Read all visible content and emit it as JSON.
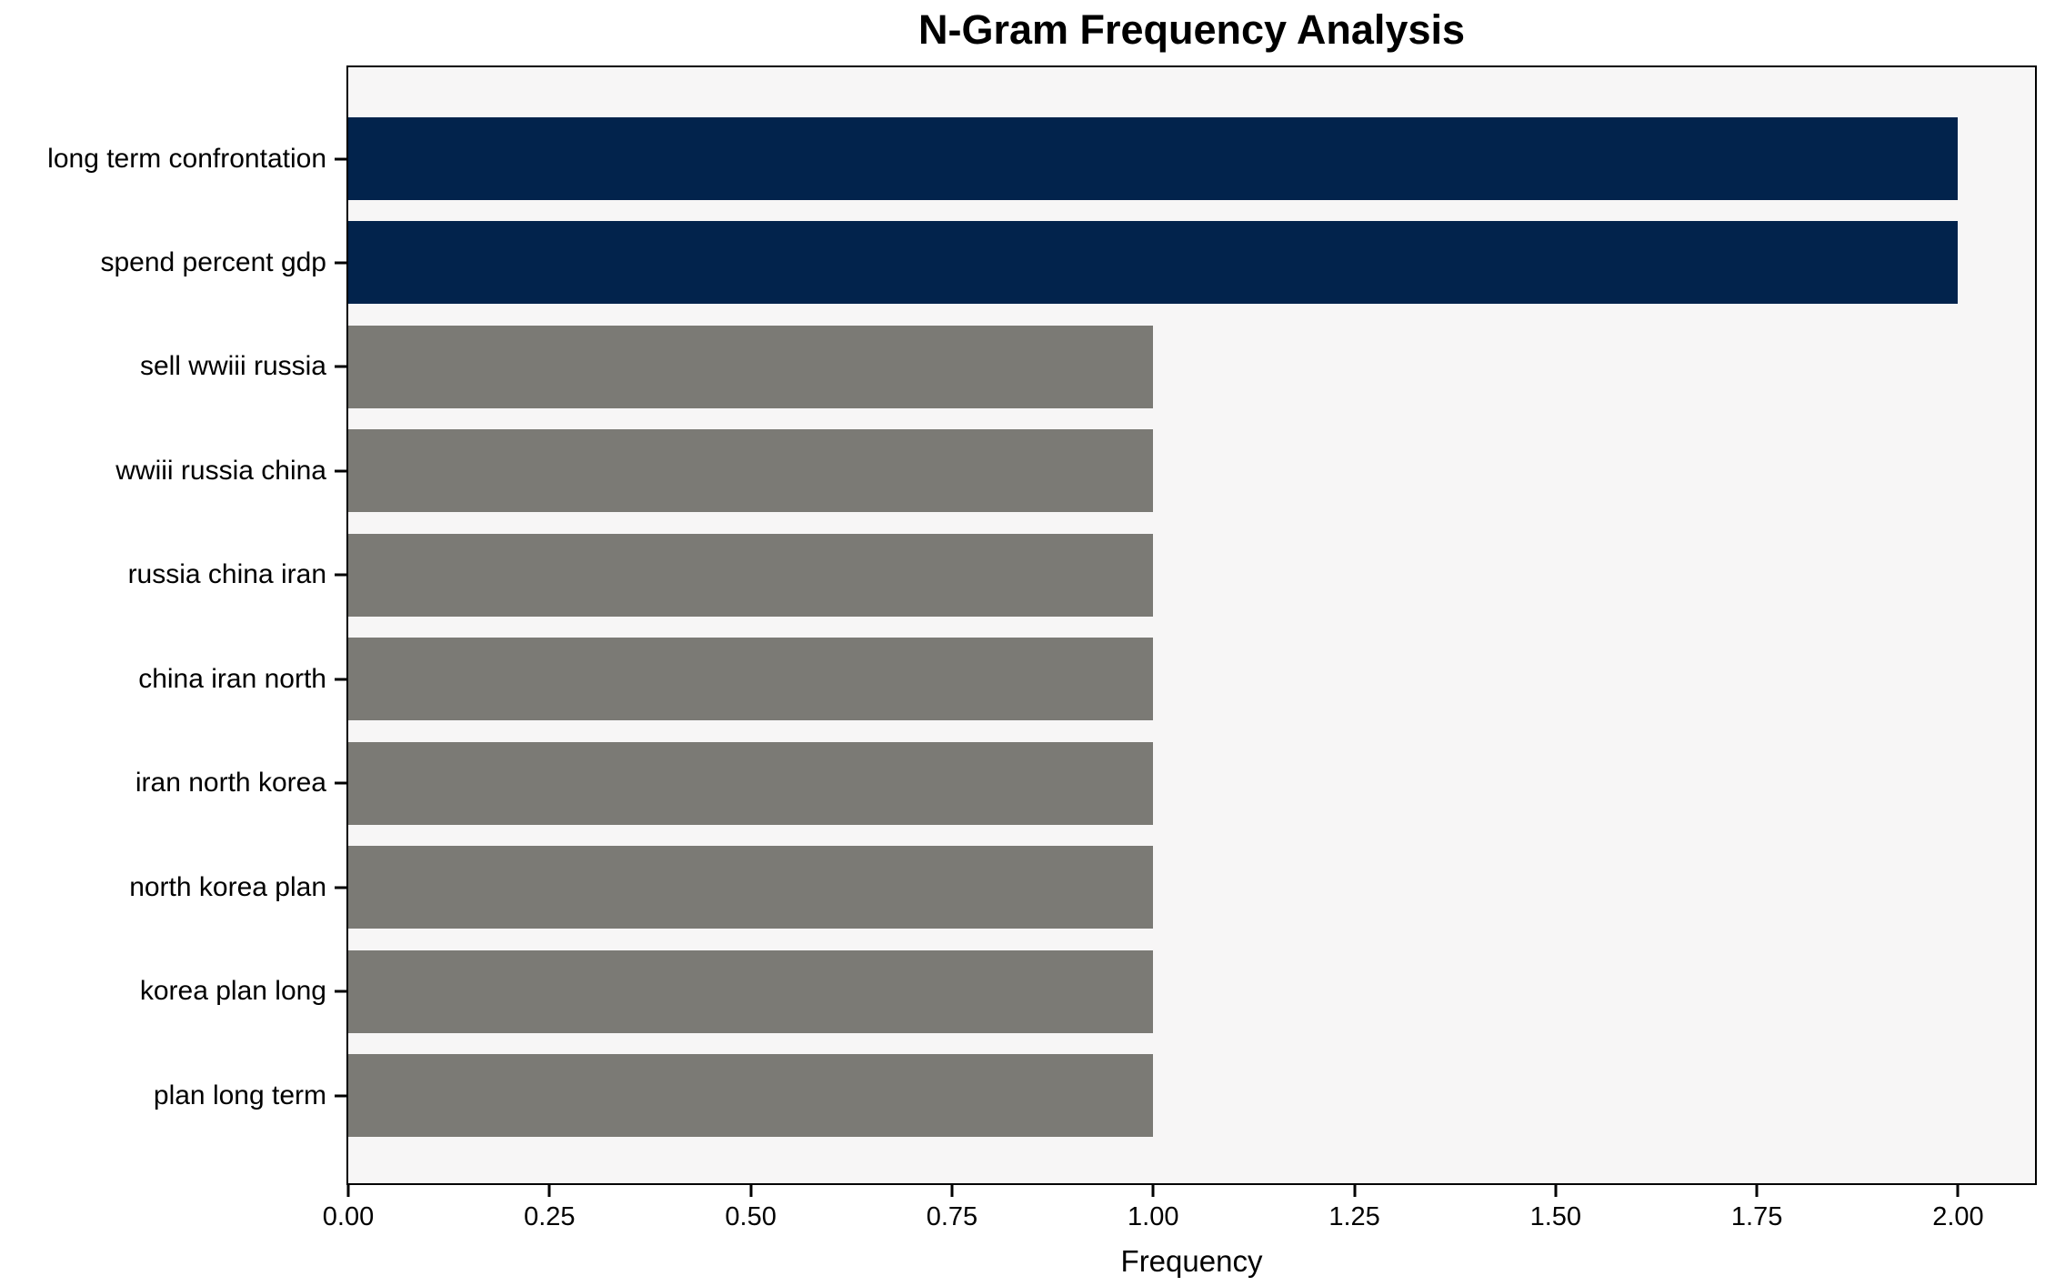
{
  "chart_data": {
    "type": "bar",
    "orientation": "horizontal",
    "title": "N-Gram Frequency Analysis",
    "xlabel": "Frequency",
    "ylabel": "",
    "categories": [
      "long term confrontation",
      "spend percent gdp",
      "sell wwiii russia",
      "wwiii russia china",
      "russia china iran",
      "china iran north",
      "iran north korea",
      "north korea plan",
      "korea plan long",
      "plan long term"
    ],
    "values": [
      2,
      2,
      1,
      1,
      1,
      1,
      1,
      1,
      1,
      1
    ],
    "bar_colors": [
      "#02234c",
      "#02234c",
      "#7b7a75",
      "#7b7a75",
      "#7b7a75",
      "#7b7a75",
      "#7b7a75",
      "#7b7a75",
      "#7b7a75",
      "#7b7a75"
    ],
    "xlim": [
      0,
      2.1
    ],
    "xticks": [
      "0.00",
      "0.25",
      "0.50",
      "0.75",
      "1.00",
      "1.25",
      "1.50",
      "1.75",
      "2.00"
    ],
    "grid": false,
    "legend": null,
    "colors": {
      "highlight_bar": "#02234c",
      "default_bar": "#7b7a75",
      "plot_background": "#f7f6f6",
      "figure_background": "#ffffff",
      "spine": "#000000",
      "text": "#000000"
    }
  }
}
